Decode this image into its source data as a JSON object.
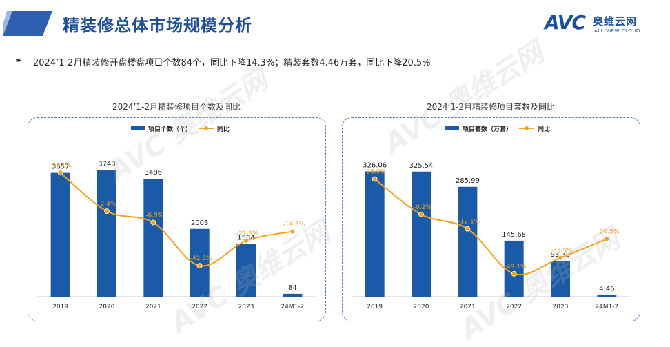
{
  "header": {
    "title": "精装修总体市场规模分析",
    "logo_mark": "AVC",
    "logo_cn": "奥维云网",
    "logo_en": "ALL VIEW CLOUD"
  },
  "summary": "2024’1-2月精装修开盘楼盘项目个数84个，同比下降14.3%；精装套数4.46万套，同比下降20.5%",
  "watermark": {
    "mark": "AVC",
    "cn": "奥维云网",
    "en": "ALL VIEW CLOUD"
  },
  "colors": {
    "bar": "#1a5aa6",
    "line": "#f5a11c",
    "title": "#1f4f9a",
    "panel_border": "#4a78c2"
  },
  "chart_data": [
    {
      "type": "bar",
      "title": "2024’1-2月精装修项目个数及同比",
      "categories": [
        "2019",
        "2020",
        "2021",
        "2022",
        "2023",
        "24M1-2"
      ],
      "series": [
        {
          "name": "项目个数（个）",
          "type": "bar",
          "values": [
            3657,
            3743,
            3486,
            2003,
            1564,
            84
          ],
          "labels": [
            "3657",
            "3743",
            "3486",
            "2003",
            "1564",
            "84"
          ]
        },
        {
          "name": "同比",
          "type": "line",
          "values": [
            34.1,
            2.4,
            -6.9,
            -42.5,
            -21.9,
            -14.3
          ],
          "labels": [
            "34.1%",
            "2.4%",
            "-6.9%",
            "-42.5%",
            "-21.9%",
            "-14.3%"
          ]
        }
      ],
      "ylim_bar": [
        0,
        4200
      ],
      "ylim_line": [
        -60,
        40
      ],
      "legend": "top"
    },
    {
      "type": "bar",
      "title": "2024’1-2月精装修项目套数及同比",
      "categories": [
        "2019",
        "2020",
        "2021",
        "2022",
        "2023",
        "24M1-2"
      ],
      "series": [
        {
          "name": "项目套数（万套）",
          "type": "bar",
          "values": [
            326.06,
            325.54,
            285.99,
            145.68,
            93.39,
            4.46
          ],
          "labels": [
            "326.06",
            "325.54",
            "285.99",
            "145.68",
            "93.39",
            "4.46"
          ]
        },
        {
          "name": "同比",
          "type": "line",
          "values": [
            28.9,
            -0.2,
            -12.1,
            -49.1,
            -35.9,
            -20.5
          ],
          "labels": [
            "28.9%",
            "-0.2%",
            "-12.1%",
            "-49.1%",
            "-35.9%",
            "-20.5%"
          ]
        }
      ],
      "ylim_bar": [
        0,
        370
      ],
      "ylim_line": [
        -60,
        40
      ],
      "legend": "top"
    }
  ]
}
